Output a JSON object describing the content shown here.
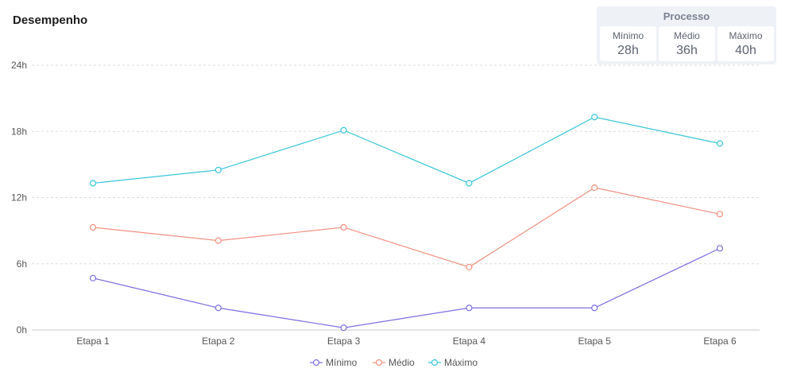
{
  "chart_data": {
    "type": "line",
    "title": "Desempenho",
    "categories": [
      "Etapa 1",
      "Etapa 2",
      "Etapa 3",
      "Etapa 4",
      "Etapa 5",
      "Etapa 6"
    ],
    "y_ticks": [
      "0h",
      "6h",
      "12h",
      "18h",
      "24h"
    ],
    "ylim": [
      0,
      24
    ],
    "grid": true,
    "legend_position": "bottom-center",
    "series": [
      {
        "name": "Mínimo",
        "color": "#7b6ee0",
        "values": [
          4.7,
          2.0,
          0.2,
          2.0,
          2.0,
          7.4
        ]
      },
      {
        "name": "Médio",
        "color": "#f08f80",
        "values": [
          9.3,
          8.1,
          9.3,
          5.7,
          12.9,
          10.5
        ]
      },
      {
        "name": "Máximo",
        "color": "#36c5d9",
        "values": [
          13.3,
          14.5,
          18.1,
          13.3,
          19.3,
          16.9
        ]
      }
    ]
  },
  "process": {
    "title": "Processo",
    "stats": [
      {
        "label": "Mínimo",
        "value": "28h"
      },
      {
        "label": "Médio",
        "value": "36h"
      },
      {
        "label": "Máximo",
        "value": "40h"
      }
    ]
  }
}
